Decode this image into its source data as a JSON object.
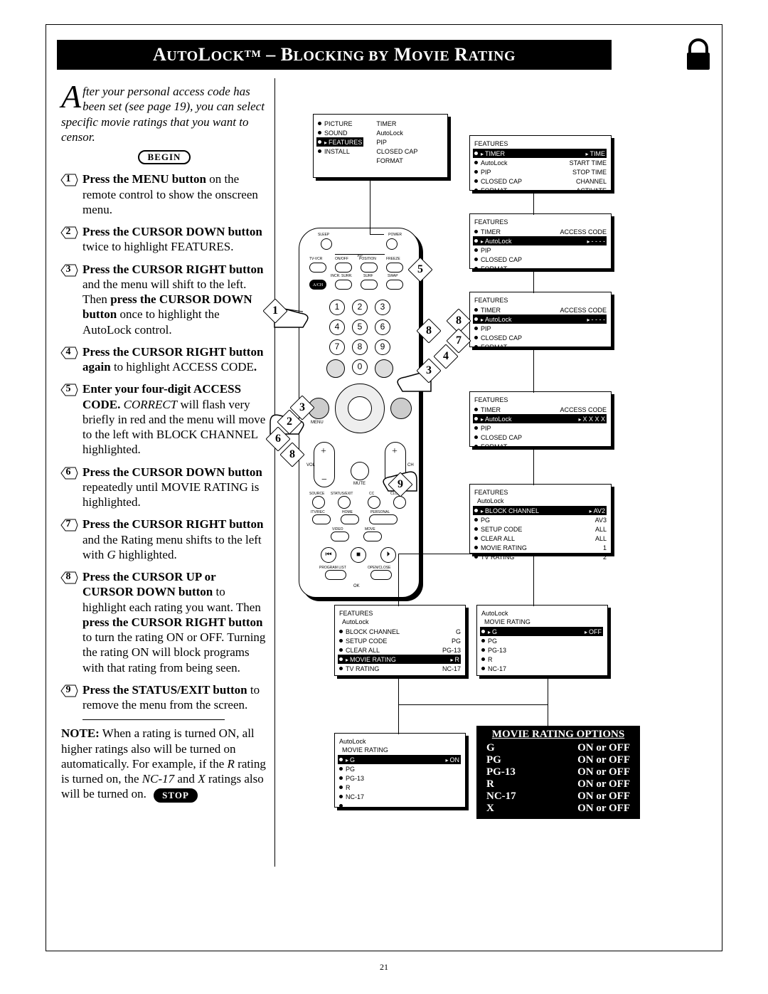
{
  "header": {
    "title": "AutoLock™ – Blocking by Movie Rating"
  },
  "intro": {
    "drop": "A",
    "text": "fter your personal access code has been set (see page 19), you can select specific movie ratings that you want to censor.",
    "begin": "BEGIN"
  },
  "steps": [
    {
      "n": "1",
      "html": "<b>Press the MENU button</b> on the remote control to show the onscreen menu."
    },
    {
      "n": "2",
      "html": "<b>Press the CURSOR DOWN button</b> twice to highlight FEATURES."
    },
    {
      "n": "3",
      "html": "<b>Press the CURSOR RIGHT button</b> and the menu will shift to the left. Then <b>press the CURSOR DOWN button</b> once to highlight the AutoLock control."
    },
    {
      "n": "4",
      "html": "<b>Press the CURSOR RIGHT button again</b> to highlight ACCESS CODE<b>.</b>"
    },
    {
      "n": "5",
      "html": "<b>Enter your four-digit ACCESS CODE.</b> <i>CORRECT</i> will flash very briefly in red and the menu will move to the left with BLOCK CHANNEL highlighted."
    },
    {
      "n": "6",
      "html": "<b>Press the CURSOR DOWN button</b> repeatedly until MOVIE RATING is highlighted."
    },
    {
      "n": "7",
      "html": "<b>Press the CURSOR RIGHT button</b> and the Rating menu shifts to the left with <i>G</i> highlighted."
    },
    {
      "n": "8",
      "html": "<b>Press the CURSOR UP or CURSOR DOWN button</b> to highlight each rating you want. Then <b>press the CURSOR RIGHT button</b> to turn the rating ON or OFF. Turning the rating ON will block programs with that rating from being seen."
    },
    {
      "n": "9",
      "html": "<b>Press the STATUS/EXIT button</b> to remove the menu from the screen."
    }
  ],
  "note": {
    "label": "NOTE:",
    "text": "When a rating is turned ON, all higher ratings also will be turned on automatically.  For example, if the <i>R</i> rating is turned on, the <i>NC-17</i> and <i>X</i> ratings also will be turned on.",
    "stop": "STOP"
  },
  "pageNumber": "21",
  "osd": {
    "main": {
      "left": [
        "PICTURE",
        "SOUND",
        "FEATURES",
        "INSTALL"
      ],
      "right": [
        "TIMER",
        "AutoLock",
        "PIP",
        "CLOSED CAP",
        "FORMAT"
      ],
      "hl": "FEATURES"
    },
    "f1": {
      "title": "FEATURES",
      "rows": [
        [
          "TIMER",
          "TIME"
        ],
        [
          "AutoLock",
          "START TIME"
        ],
        [
          "PIP",
          "STOP TIME"
        ],
        [
          "CLOSED CAP",
          "CHANNEL"
        ],
        [
          "FORMAT",
          "ACTIVATE"
        ]
      ],
      "hl": "TIMER"
    },
    "f2": {
      "title": "FEATURES",
      "rows": [
        [
          "TIMER",
          "ACCESS CODE"
        ],
        [
          "AutoLock",
          "- - - -"
        ],
        [
          "PIP",
          ""
        ],
        [
          "CLOSED CAP",
          ""
        ],
        [
          "FORMAT",
          ""
        ]
      ],
      "hl": "AutoLock"
    },
    "f3": {
      "title": "FEATURES",
      "rows": [
        [
          "TIMER",
          "ACCESS CODE"
        ],
        [
          "AutoLock",
          "- - - -"
        ],
        [
          "PIP",
          ""
        ],
        [
          "CLOSED CAP",
          ""
        ],
        [
          "FORMAT",
          ""
        ]
      ],
      "hl": "AutoLock"
    },
    "f4": {
      "title": "FEATURES",
      "rows": [
        [
          "TIMER",
          "ACCESS CODE"
        ],
        [
          "AutoLock",
          "X X X X"
        ],
        [
          "PIP",
          ""
        ],
        [
          "CLOSED CAP",
          ""
        ],
        [
          "FORMAT",
          ""
        ]
      ],
      "hl": "AutoLock"
    },
    "f5": {
      "title": "FEATURES",
      "sub": "AutoLock",
      "rows": [
        [
          "BLOCK CHANNEL",
          "AV2"
        ],
        [
          "PG",
          "AV3"
        ],
        [
          "SETUP CODE",
          "ALL"
        ],
        [
          "CLEAR ALL",
          "ALL"
        ],
        [
          "MOVIE RATING",
          "1"
        ],
        [
          "TV RATING",
          "2"
        ]
      ],
      "hl": "BLOCK CHANNEL"
    },
    "f6": {
      "title": "FEATURES",
      "sub": "AutoLock",
      "rows": [
        [
          "BLOCK CHANNEL",
          "G"
        ],
        [
          "SETUP CODE",
          "PG"
        ],
        [
          "CLEAR ALL",
          "PG-13"
        ],
        [
          "MOVIE RATING",
          "R"
        ],
        [
          "TV RATING",
          "NC-17"
        ]
      ],
      "hl": "MOVIE RATING"
    },
    "f7": {
      "title": "AutoLock",
      "sub": "MOVIE RATING",
      "rows": [
        [
          "G",
          "OFF"
        ],
        [
          "PG",
          ""
        ],
        [
          "PG-13",
          ""
        ],
        [
          "R",
          ""
        ],
        [
          "NC-17",
          ""
        ]
      ],
      "hl": "G"
    },
    "f8": {
      "title": "AutoLock",
      "sub": "MOVIE RATING",
      "rows": [
        [
          "G",
          "ON"
        ],
        [
          "PG",
          ""
        ],
        [
          "PG-13",
          ""
        ],
        [
          "R",
          ""
        ],
        [
          "NC-17",
          ""
        ],
        [
          " ",
          ""
        ]
      ],
      "hl": "G"
    }
  },
  "movieOptions": {
    "title": "MOVIE RATING OPTIONS",
    "rows": [
      [
        "G",
        "ON or OFF"
      ],
      [
        "PG",
        "ON or OFF"
      ],
      [
        "PG-13",
        "ON or OFF"
      ],
      [
        "R",
        "ON or OFF"
      ],
      [
        "NC-17",
        "ON or OFF"
      ],
      [
        "X",
        "ON or OFF"
      ]
    ]
  },
  "remote": {
    "topLabels": [
      "SLEEP",
      "POWER",
      "TV-VCR",
      "ON/OFF",
      "POSITION",
      "FREEZE",
      "A/CH",
      "INCR. SURR.",
      "SURF",
      "SWAP"
    ],
    "bottomLabels": [
      "SOURCE",
      "STATUS/EXIT",
      "CC",
      "CLOCK",
      "ITV/REC",
      "HOME",
      "PERSONAL",
      "VIDEO",
      "MOVE",
      "PROGRAM LIST",
      "OPEN/CLOSE",
      "OK"
    ],
    "plusminus": [
      "VOL",
      "CH",
      "MUTE"
    ]
  },
  "callouts": [
    "1",
    "2",
    "3",
    "3",
    "4",
    "5",
    "6",
    "7",
    "8",
    "8",
    "8",
    "8",
    "9"
  ]
}
